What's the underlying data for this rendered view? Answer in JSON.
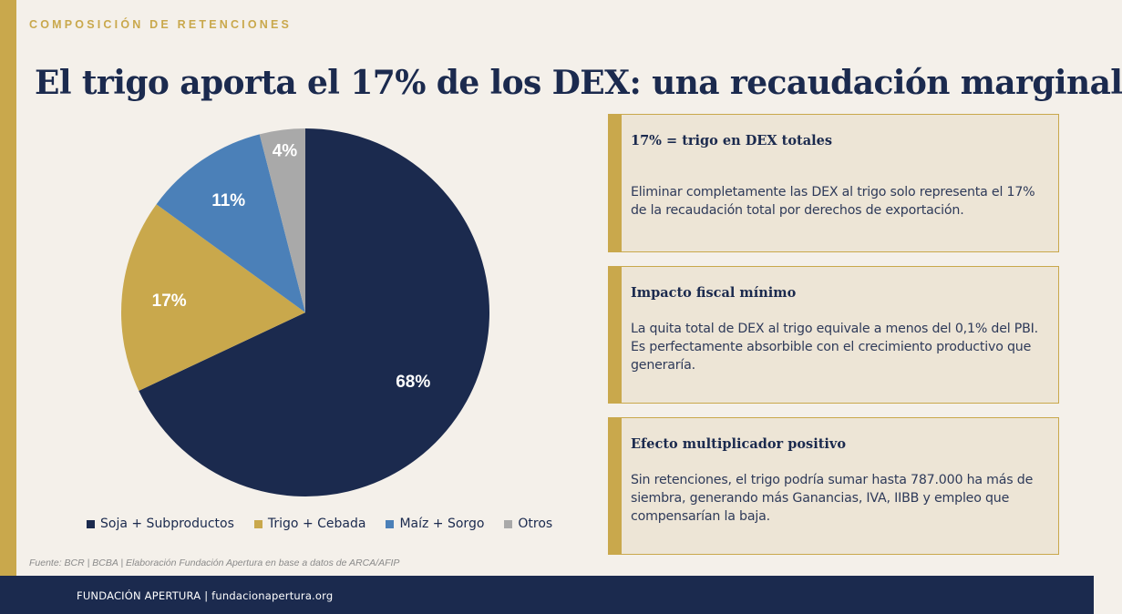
{
  "header": {
    "kicker": "COMPOSICIÓN DE RETENCIONES",
    "title": "El trigo aporta el 17% de los DEX: una recaudación marginal"
  },
  "chart_data": {
    "type": "pie",
    "categories": [
      "Soja + Subproductos",
      "Trigo + Cebada",
      "Maíz + Sorgo",
      "Otros"
    ],
    "values": [
      68,
      17,
      11,
      4
    ],
    "data_labels": [
      "68%",
      "17%",
      "11%",
      "4%"
    ],
    "colors": [
      "#1b2a4e",
      "#c9a84c",
      "#4b80b8",
      "#a9a9a9"
    ],
    "legend": "bottom",
    "start": "12 o'clock, clockwise"
  },
  "cards": [
    {
      "title": "17% = trigo en DEX totales",
      "body": "Eliminar completamente las DEX al trigo solo representa el 17% de la recaudación total por derechos de exportación."
    },
    {
      "title": "Impacto fiscal mínimo",
      "body": "La quita total de DEX al trigo equivale a menos del 0,1% del PBI. Es perfectamente absorbible con el crecimiento productivo que generaría."
    },
    {
      "title": "Efecto multiplicador positivo",
      "body": "Sin retenciones, el trigo podría sumar hasta 787.000 ha más de siembra, generando más Ganancias, IVA, IIBB y empleo que compensarían la baja."
    }
  ],
  "source": "Fuente: BCR | BCBA | Elaboración Fundación Apertura en base a datos de ARCA/AFIP",
  "footer": {
    "text": "FUNDACIÓN APERTURA  |  fundacionapertura.org"
  },
  "colors": {
    "accent": "#c9a84c",
    "navy": "#1b2a4e",
    "background": "#f4f0ea",
    "card_bg": "#ede5d6"
  }
}
